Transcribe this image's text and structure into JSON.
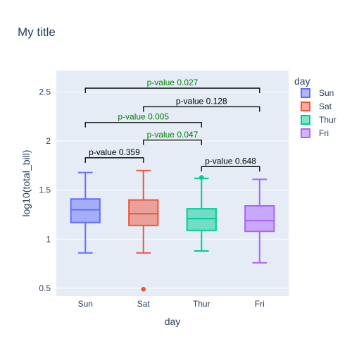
{
  "chart_data": {
    "type": "box",
    "title": "My title",
    "xlabel": "day",
    "ylabel": "log10(total_bill)",
    "categories": [
      "Sun",
      "Sat",
      "Thur",
      "Fri"
    ],
    "ylim": [
      0.42,
      2.72
    ],
    "yticks": [
      0.5,
      1,
      1.5,
      2,
      2.5
    ],
    "ytick_labels": [
      "0.5",
      "1",
      "1.5",
      "2",
      "2.5"
    ],
    "grid": true,
    "legend": {
      "title": "day",
      "placement": "top-right"
    },
    "series": [
      {
        "name": "Sun",
        "color": "#636efa",
        "min": 0.86,
        "q1": 1.17,
        "median": 1.3,
        "q3": 1.41,
        "max": 1.68,
        "outliers": []
      },
      {
        "name": "Sat",
        "color": "#ef553b",
        "min": 0.86,
        "q1": 1.14,
        "median": 1.26,
        "q3": 1.4,
        "max": 1.7,
        "outliers": [
          0.49
        ]
      },
      {
        "name": "Thur",
        "color": "#00cc96",
        "min": 0.88,
        "q1": 1.09,
        "median": 1.21,
        "q3": 1.31,
        "max": 1.62,
        "outliers": [
          1.63
        ]
      },
      {
        "name": "Fri",
        "color": "#ab63fa",
        "min": 0.76,
        "q1": 1.08,
        "median": 1.19,
        "q3": 1.34,
        "max": 1.61,
        "outliers": []
      }
    ],
    "annotations": [
      {
        "from": "Sun",
        "to": "Fri",
        "y": 2.54,
        "label": "p-value 0.027",
        "color": "#008000"
      },
      {
        "from": "Sat",
        "to": "Fri",
        "y": 2.35,
        "label": "p-value 0.128",
        "color": "#000000"
      },
      {
        "from": "Sun",
        "to": "Thur",
        "y": 2.19,
        "label": "p-value 0.005",
        "color": "#008000"
      },
      {
        "from": "Sat",
        "to": "Thur",
        "y": 2.01,
        "label": "p-value 0.047",
        "color": "#008000"
      },
      {
        "from": "Sun",
        "to": "Sat",
        "y": 1.83,
        "label": "p-value 0.359",
        "color": "#000000"
      },
      {
        "from": "Thur",
        "to": "Fri",
        "y": 1.74,
        "label": "p-value 0.648",
        "color": "#000000"
      }
    ]
  }
}
